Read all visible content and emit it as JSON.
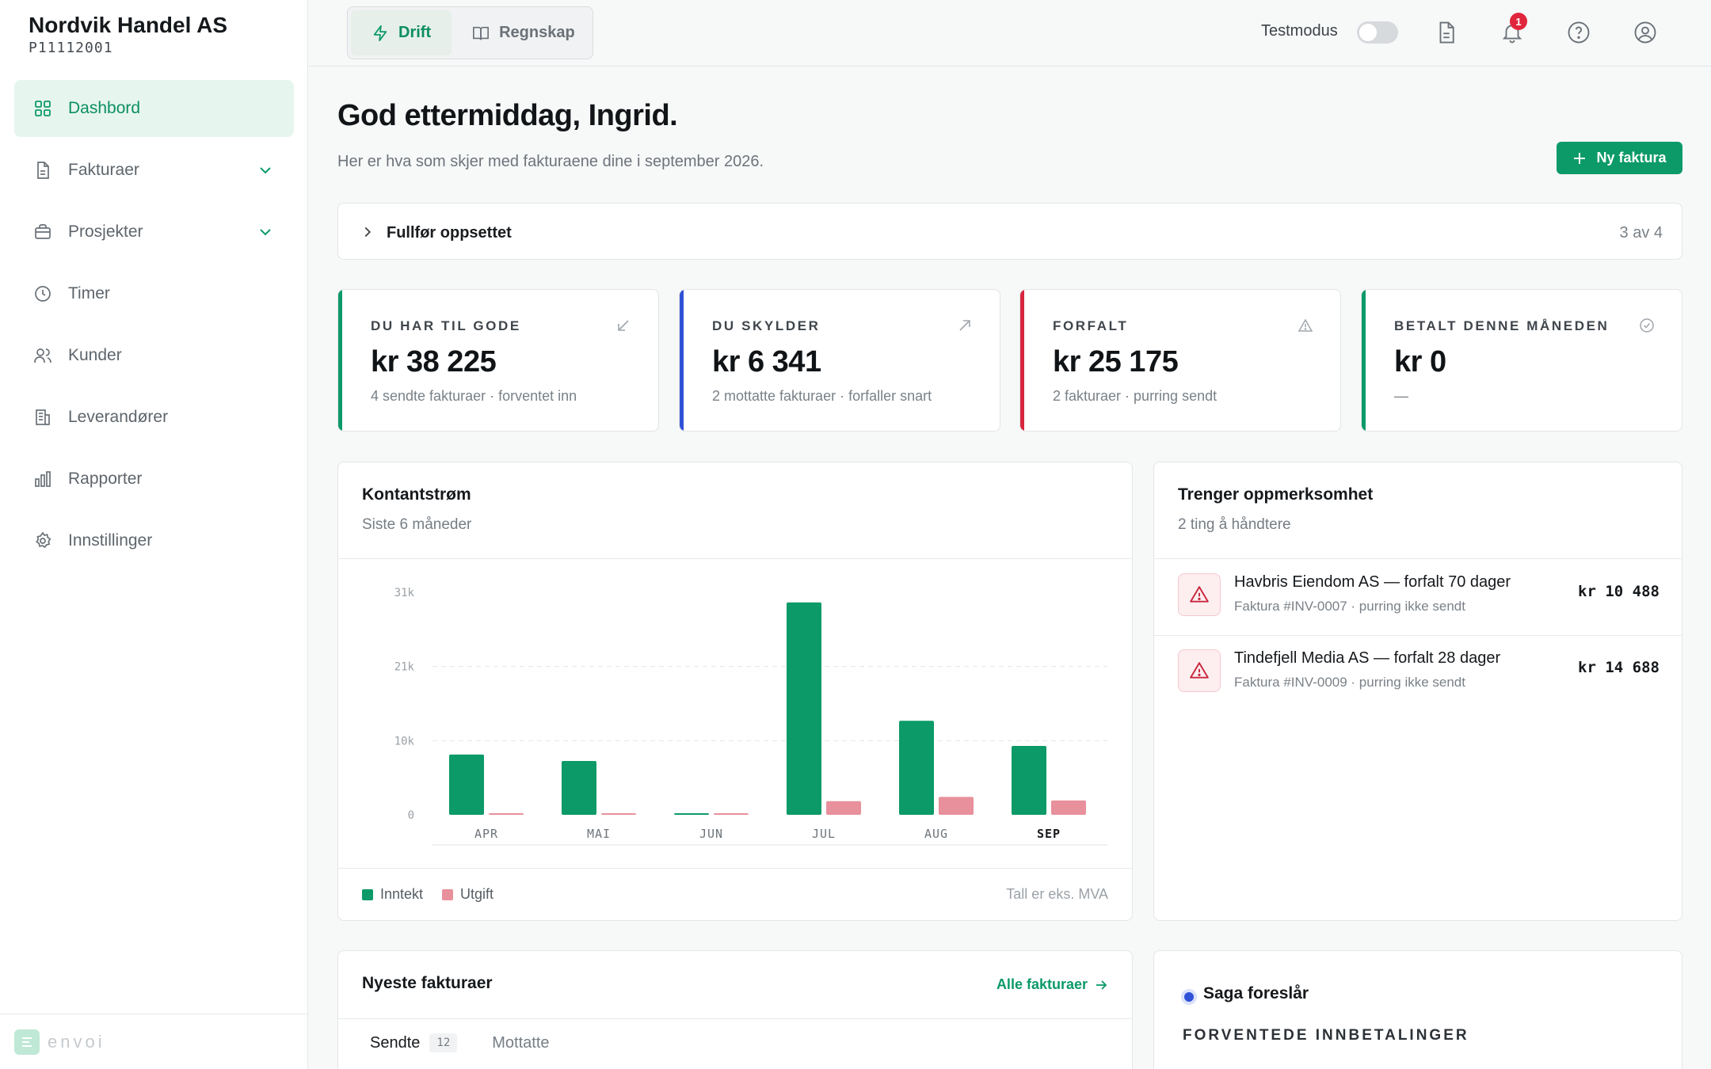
{
  "sidebar": {
    "company_name": "Nordvik Handel AS",
    "company_id": "P11112001",
    "items": [
      {
        "label": "Dashbord",
        "icon": "dashboard-grid-icon",
        "active": true
      },
      {
        "label": "Fakturaer",
        "icon": "document-icon",
        "expandable": true
      },
      {
        "label": "Prosjekter",
        "icon": "briefcase-icon",
        "expandable": true
      },
      {
        "label": "Timer",
        "icon": "clock-icon"
      },
      {
        "label": "Kunder",
        "icon": "users-icon"
      },
      {
        "label": "Leverandører",
        "icon": "building-icon"
      },
      {
        "label": "Rapporter",
        "icon": "bar-chart-icon"
      },
      {
        "label": "Innstillinger",
        "icon": "gear-icon"
      }
    ],
    "brand": "envoi"
  },
  "topbar": {
    "modes": [
      {
        "label": "Drift",
        "icon": "lightning-icon",
        "active": true
      },
      {
        "label": "Regnskap",
        "icon": "book-icon",
        "active": false
      }
    ],
    "testmodus_label": "Testmodus",
    "testmodus_on": false,
    "notification_count": "1"
  },
  "main": {
    "greeting": "God ettermiddag, Ingrid.",
    "subtitle": "Her er hva som skjer med fakturaene dine i september 2026.",
    "new_invoice_label": "Ny faktura",
    "setup": {
      "title": "Fullfør oppsettet",
      "progress": "3 av 4"
    },
    "kpis": [
      {
        "label": "DU HAR TIL GODE",
        "value": "kr 38 225",
        "note": "4 sendte fakturaer · forventet inn",
        "color": "#0c9a68",
        "icon": "arrow-down-left-icon"
      },
      {
        "label": "DU SKYLDER",
        "value": "kr 6 341",
        "note": "2 mottatte fakturaer · forfaller snart",
        "color": "#2f52d6",
        "icon": "arrow-up-right-icon"
      },
      {
        "label": "FORFALT",
        "value": "kr 25 175",
        "note": "2 fakturaer · purring sendt",
        "color": "#d7263d",
        "icon": "warning-icon"
      },
      {
        "label": "BETALT DENNE MÅNEDEN",
        "value": "kr 0",
        "note": "—",
        "color": "#0c9a68",
        "icon": "check-circle-icon"
      }
    ],
    "cashflow": {
      "title": "Kontantstrøm",
      "subtitle": "Siste 6 måneder",
      "legend_income": "Inntekt",
      "legend_expense": "Utgift",
      "note": "Tall er eks. MVA"
    },
    "attention": {
      "title": "Trenger oppmerksomhet",
      "subtitle": "2 ting å håndtere",
      "items": [
        {
          "title": "Havbris Eiendom AS — forfalt 70 dager",
          "sub": "Faktura #INV-0007 · purring ikke sendt",
          "amount": "kr 10 488"
        },
        {
          "title": "Tindefjell Media AS — forfalt 28 dager",
          "sub": "Faktura #INV-0009 · purring ikke sendt",
          "amount": "kr 14 688"
        }
      ]
    },
    "latest": {
      "title": "Nyeste fakturaer",
      "all_link": "Alle fakturaer",
      "tabs": [
        {
          "label": "Sendte",
          "count": "12",
          "active": true
        },
        {
          "label": "Mottatte",
          "active": false
        }
      ]
    },
    "saga": {
      "title": "Saga foreslår",
      "section": "FORVENTEDE INNBETALINGER"
    }
  },
  "chart_data": {
    "type": "bar",
    "categories": [
      "APR",
      "MAI",
      "JUN",
      "JUL",
      "AUG",
      "SEP"
    ],
    "highlight_category": "SEP",
    "series": [
      {
        "name": "Inntekt",
        "color": "#0c9a68",
        "values": [
          8400,
          7500,
          0,
          29600,
          13100,
          9600
        ]
      },
      {
        "name": "Utgift",
        "color": "#e8909b",
        "values": [
          0,
          0,
          0,
          1900,
          2500,
          2000
        ]
      }
    ],
    "y_ticks": [
      "0",
      "10k",
      "21k",
      "31k"
    ],
    "y_tick_values": [
      0,
      10333,
      20667,
      31000
    ],
    "ylim": [
      0,
      31000
    ],
    "grid": true
  }
}
